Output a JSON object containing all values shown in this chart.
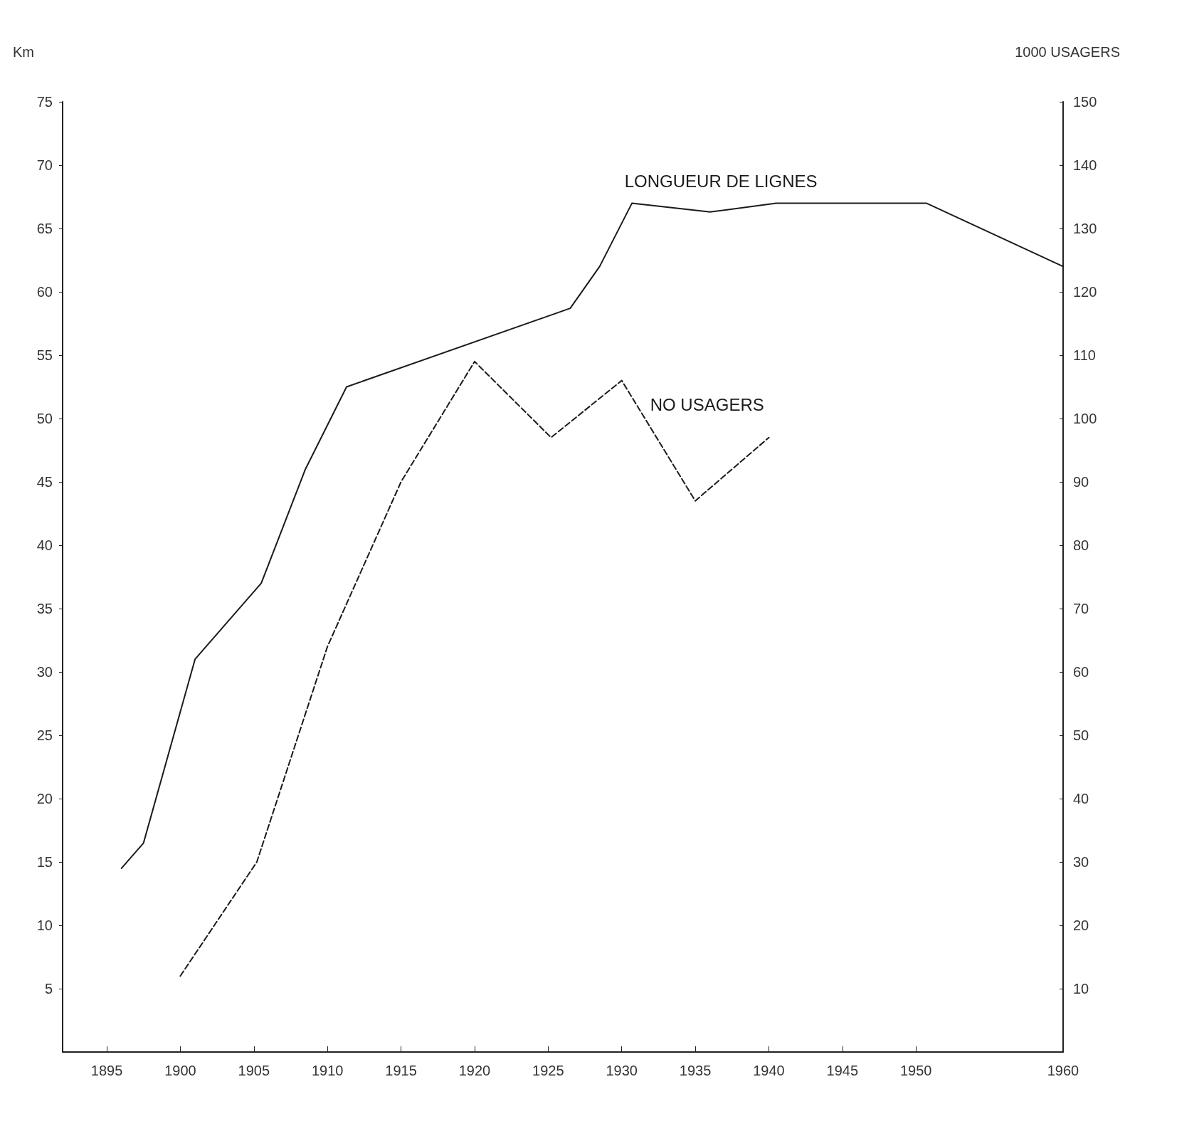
{
  "chart_data": {
    "type": "line",
    "ylabel": "Km",
    "y2label": "1000 USAGERS",
    "xlim": [
      1892,
      1960
    ],
    "xticks": [
      1895,
      1900,
      1905,
      1910,
      1915,
      1920,
      1925,
      1930,
      1935,
      1940,
      1945,
      1950,
      1960
    ],
    "ylim": [
      0,
      75
    ],
    "yticks": [
      5,
      10,
      15,
      20,
      25,
      30,
      35,
      40,
      45,
      50,
      55,
      60,
      65,
      70,
      75
    ],
    "y2lim": [
      0,
      150
    ],
    "y2ticks": [
      10,
      20,
      30,
      40,
      50,
      60,
      70,
      80,
      90,
      100,
      110,
      120,
      130,
      140,
      150
    ],
    "grid": false,
    "legend": false,
    "marker": "none",
    "series": [
      {
        "name": "LONGUEUR DE LIGNES",
        "color": "#1a1a1a",
        "line_style": "solid",
        "x": [
          1896,
          1897.5,
          1901,
          1905.5,
          1908.5,
          1911.3,
          1926.5,
          1928.5,
          1930.7,
          1936,
          1940.5,
          1950.7,
          1960
        ],
        "values": [
          14.5,
          16.5,
          31,
          37,
          46,
          52.5,
          58.7,
          62,
          67,
          66.3,
          67,
          67,
          62
        ]
      },
      {
        "name": "NO USAGERS",
        "color": "#1a1a1a",
        "line_style": "dashed",
        "axis": "y2",
        "x": [
          1900,
          1905.2,
          1910,
          1915,
          1920,
          1925.2,
          1930,
          1935,
          1940
        ],
        "values": [
          12,
          30,
          64,
          90,
          109,
          97,
          106,
          87,
          97
        ]
      }
    ]
  }
}
